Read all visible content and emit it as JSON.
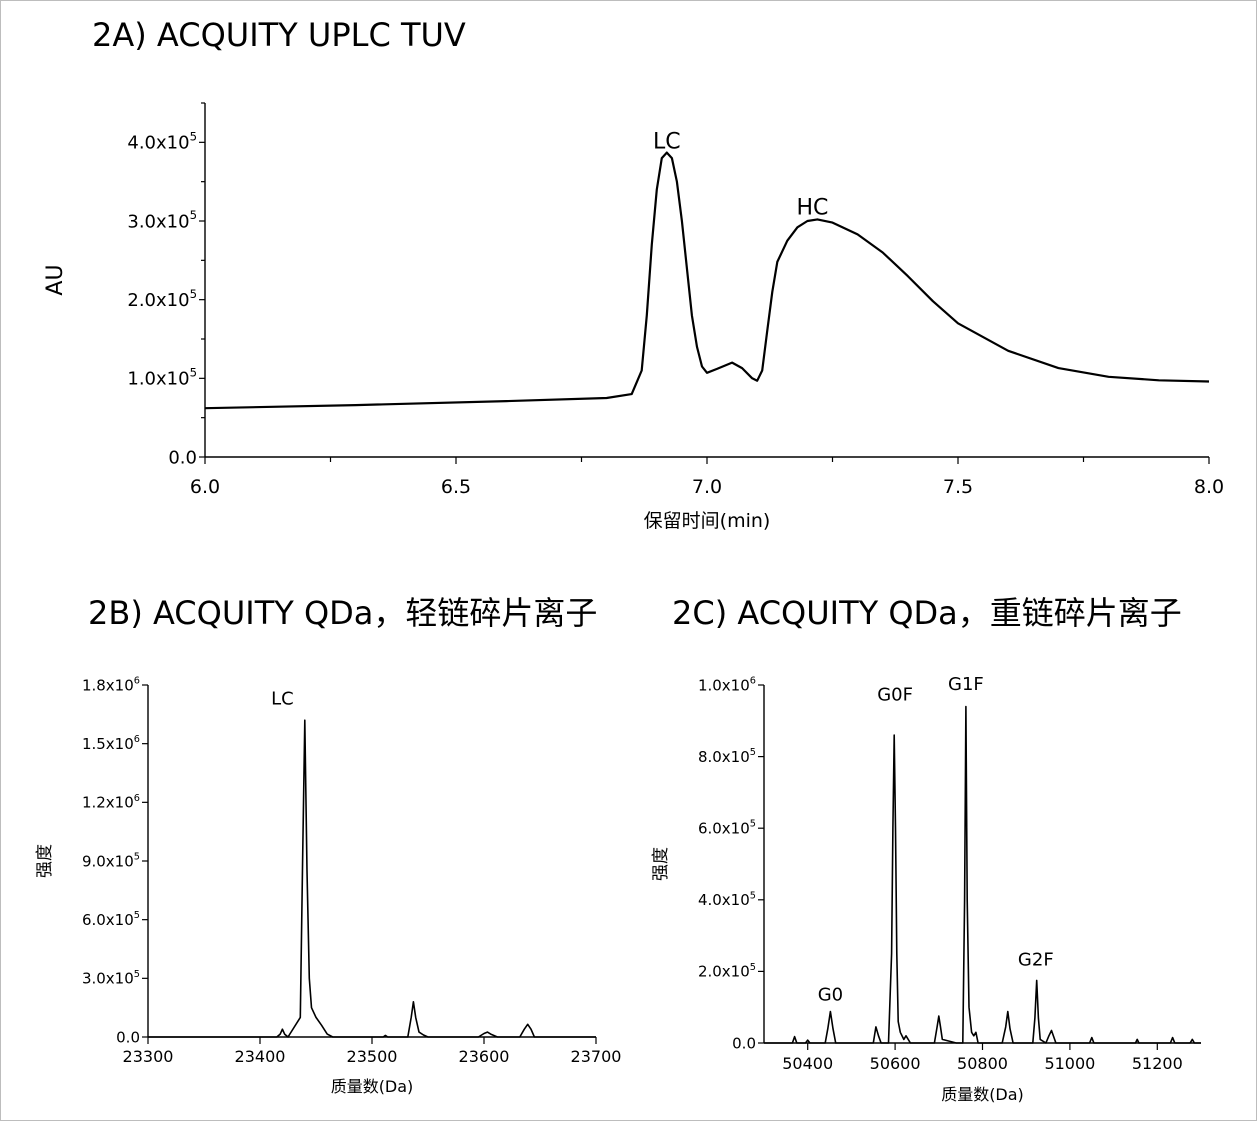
{
  "chart_data": [
    {
      "id": "a",
      "type": "line",
      "title": "2A) ACQUITY UPLC TUV",
      "xlabel": "保留时间(min)",
      "ylabel": "AU",
      "xlim": [
        6.0,
        8.0
      ],
      "ylim": [
        0,
        450000
      ],
      "x_ticks": [
        6.0,
        6.5,
        7.0,
        7.5,
        8.0
      ],
      "x_tick_labels": [
        "6.0",
        "6.5",
        "7.0",
        "7.5",
        "8.0"
      ],
      "y_ticks": [
        0,
        100000,
        200000,
        300000,
        400000
      ],
      "y_tick_mantissa": [
        "0.0",
        "1.0x10",
        "2.0x10",
        "3.0x10",
        "4.0x10"
      ],
      "y_tick_exponent": [
        "",
        "5",
        "5",
        "5",
        "5"
      ],
      "annotations": [
        {
          "text": "LC",
          "x": 6.92,
          "y": 387000
        },
        {
          "text": "HC",
          "x": 7.21,
          "y": 303000
        }
      ],
      "series": [
        {
          "x": [
            6.0,
            6.3,
            6.6,
            6.8,
            6.85,
            6.87,
            6.88,
            6.89,
            6.9,
            6.91,
            6.92,
            6.93,
            6.94,
            6.95,
            6.96,
            6.97,
            6.98,
            6.99,
            7.0,
            7.02,
            7.05,
            7.07,
            7.09,
            7.1,
            7.11,
            7.12,
            7.13,
            7.14,
            7.16,
            7.18,
            7.2,
            7.22,
            7.25,
            7.3,
            7.35,
            7.4,
            7.45,
            7.5,
            7.6,
            7.7,
            7.8,
            7.9,
            8.0
          ],
          "y": [
            62000,
            66000,
            71000,
            75000,
            80000,
            110000,
            180000,
            270000,
            340000,
            380000,
            387000,
            380000,
            350000,
            300000,
            240000,
            180000,
            140000,
            115000,
            107000,
            112000,
            120000,
            113000,
            100000,
            97000,
            110000,
            160000,
            210000,
            248000,
            275000,
            292000,
            300000,
            302000,
            298000,
            283000,
            260000,
            230000,
            198000,
            170000,
            135000,
            113000,
            102000,
            97500,
            96000
          ]
        }
      ]
    },
    {
      "id": "b",
      "type": "line",
      "title": "2B) ACQUITY QDa，轻链碎片离子",
      "xlabel": "质量数(Da)",
      "ylabel": "强度",
      "xlim": [
        23300,
        23700
      ],
      "ylim": [
        0,
        1800000
      ],
      "x_ticks": [
        23300,
        23400,
        23500,
        23600,
        23700
      ],
      "x_tick_labels": [
        "23300",
        "23400",
        "23500",
        "23600",
        "23700"
      ],
      "y_ticks": [
        0,
        300000,
        600000,
        900000,
        1200000,
        1500000,
        1800000
      ],
      "y_tick_mantissa": [
        "0.0",
        "3.0x10",
        "6.0x10",
        "9.0x10",
        "1.2x10",
        "1.5x10",
        "1.8x10"
      ],
      "y_tick_exponent": [
        "",
        "5",
        "5",
        "5",
        "6",
        "6",
        "6"
      ],
      "annotations": [
        {
          "text": "LC",
          "x": 23420,
          "y": 1680000
        }
      ],
      "series": [
        {
          "x": [
            23300,
            23415,
            23418,
            23420,
            23422,
            23425,
            23436,
            23438,
            23440,
            23442,
            23444,
            23446,
            23450,
            23455,
            23460,
            23465,
            23510,
            23512,
            23514,
            23532,
            23535,
            23537,
            23539,
            23542,
            23546,
            23550,
            23552,
            23595,
            23600,
            23603,
            23606,
            23612,
            23632,
            23636,
            23639,
            23642,
            23645,
            23700
          ],
          "y": [
            0,
            0,
            15000,
            40000,
            15000,
            0,
            100000,
            900000,
            1620000,
            850000,
            300000,
            150000,
            100000,
            60000,
            15000,
            0,
            0,
            8000,
            0,
            0,
            100000,
            180000,
            100000,
            25000,
            10000,
            0,
            0,
            0,
            18000,
            25000,
            15000,
            0,
            0,
            40000,
            65000,
            40000,
            0,
            0
          ]
        }
      ]
    },
    {
      "id": "c",
      "type": "line",
      "title": "2C) ACQUITY QDa，重链碎片离子",
      "xlabel": "质量数(Da)",
      "ylabel": "强度",
      "xlim": [
        50300,
        51300
      ],
      "ylim": [
        0,
        1000000
      ],
      "x_ticks": [
        50400,
        50600,
        50800,
        51000,
        51200
      ],
      "x_tick_labels": [
        "50400",
        "50600",
        "50800",
        "51000",
        "51200"
      ],
      "y_ticks": [
        0,
        200000,
        400000,
        600000,
        800000,
        1000000
      ],
      "y_tick_mantissa": [
        "0.0",
        "2.0x10",
        "4.0x10",
        "6.0x10",
        "8.0x10",
        "1.0x10"
      ],
      "y_tick_exponent": [
        "",
        "5",
        "5",
        "5",
        "5",
        "6"
      ],
      "annotations": [
        {
          "text": "G0",
          "x": 50452,
          "y": 108000
        },
        {
          "text": "G0F",
          "x": 50600,
          "y": 945000
        },
        {
          "text": "G1F",
          "x": 50762,
          "y": 975000
        },
        {
          "text": "G2F",
          "x": 50922,
          "y": 205000
        }
      ],
      "series": [
        {
          "x": [
            50300,
            50365,
            50370,
            50375,
            50395,
            50400,
            50405,
            50440,
            50446,
            50452,
            50458,
            50464,
            50550,
            50556,
            50562,
            50568,
            50585,
            50592,
            50595,
            50598,
            50601,
            50604,
            50607,
            50612,
            50620,
            50625,
            50635,
            50690,
            50696,
            50700,
            50704,
            50708,
            50740,
            50755,
            50759,
            50762,
            50765,
            50769,
            50775,
            50780,
            50785,
            50790,
            50845,
            50853,
            50858,
            50863,
            50870,
            50915,
            50920,
            50924,
            50928,
            50932,
            50945,
            50952,
            50958,
            50968,
            51045,
            51050,
            51055,
            51150,
            51154,
            51158,
            51230,
            51235,
            51240,
            51275,
            51280,
            51285,
            51300
          ],
          "y": [
            0,
            0,
            18000,
            0,
            0,
            8000,
            0,
            0,
            40000,
            88000,
            40000,
            0,
            0,
            45000,
            20000,
            0,
            0,
            250000,
            600000,
            860000,
            600000,
            250000,
            60000,
            30000,
            10000,
            20000,
            0,
            0,
            45000,
            75000,
            45000,
            10000,
            0,
            0,
            400000,
            940000,
            400000,
            100000,
            30000,
            20000,
            30000,
            0,
            0,
            45000,
            88000,
            40000,
            0,
            0,
            70000,
            175000,
            70000,
            10000,
            0,
            20000,
            35000,
            0,
            0,
            15000,
            0,
            0,
            10000,
            0,
            0,
            15000,
            0,
            0,
            10000,
            0,
            0
          ]
        }
      ]
    }
  ]
}
